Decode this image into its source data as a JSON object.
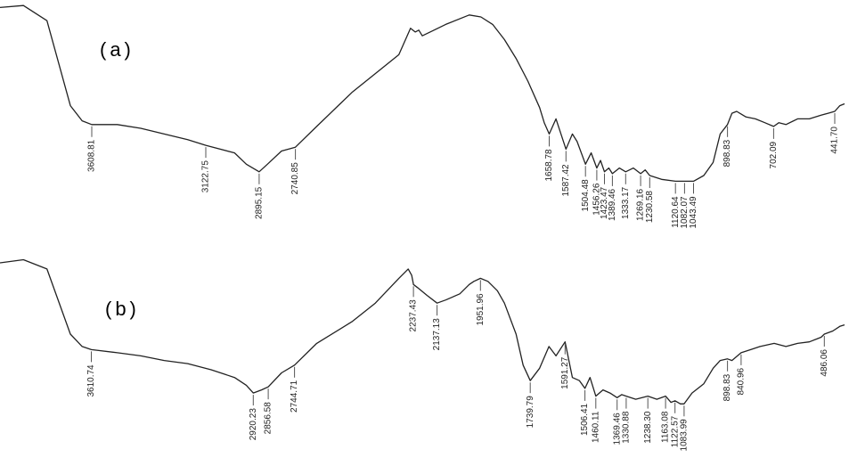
{
  "chart_data": [
    {
      "type": "line",
      "panel_label": "(a)",
      "axis": {
        "x_direction": "decreasing",
        "x_range": [
          4000,
          400
        ],
        "units": "cm-1"
      },
      "grid": false,
      "legend": "none",
      "peaks": [
        "3608.81",
        "3122.75",
        "2895.15",
        "2740.85",
        "1658.78",
        "1587.42",
        "1504.48",
        "1456.26",
        "1423.47",
        "1389.46",
        "1333.17",
        "1269.16",
        "1230.58",
        "1120.64",
        "1082.07",
        "1043.49",
        "898.83",
        "702.09",
        "441.70"
      ],
      "x": [
        4000,
        3900,
        3800,
        3700,
        3650,
        3608.81,
        3500,
        3400,
        3300,
        3200,
        3122.75,
        3000,
        2950,
        2895.15,
        2860,
        2800,
        2740.85,
        2650,
        2500,
        2400,
        2300,
        2250,
        2230,
        2215,
        2200,
        2150,
        2100,
        2000,
        1950,
        1900,
        1850,
        1800,
        1750,
        1700,
        1680,
        1658.78,
        1630,
        1587.42,
        1560,
        1540,
        1504.48,
        1480,
        1456.26,
        1440,
        1423.47,
        1405,
        1389.46,
        1360,
        1333.17,
        1300,
        1269.16,
        1250,
        1230.58,
        1180,
        1120.64,
        1082.07,
        1043.49,
        1000,
        960,
        930,
        898.83,
        880,
        860,
        820,
        780,
        740,
        702.09,
        680,
        650,
        600,
        550,
        500,
        470,
        441.7,
        420,
        400
      ],
      "y": [
        97,
        98,
        90,
        45,
        37,
        35,
        35,
        33,
        30,
        27,
        24,
        20,
        14,
        10,
        14,
        21,
        23,
        34,
        52,
        62,
        72,
        86,
        84,
        85,
        82,
        85,
        88,
        93,
        92,
        88,
        80,
        70,
        58,
        44,
        36,
        30,
        38,
        22,
        30,
        26,
        14,
        20,
        12,
        16,
        10,
        12,
        9,
        12,
        10,
        12,
        9,
        11,
        8,
        6,
        5,
        5,
        5,
        8,
        15,
        30,
        35,
        41,
        42,
        39,
        38,
        36,
        34,
        36,
        35,
        38,
        38,
        40,
        41,
        42,
        45,
        46
      ]
    },
    {
      "type": "line",
      "panel_label": "(b)",
      "axis": {
        "x_direction": "decreasing",
        "x_range": [
          4000,
          400
        ],
        "units": "cm-1"
      },
      "grid": false,
      "legend": "none",
      "peaks": [
        "3610.74",
        "2920.23",
        "2856.58",
        "2744.71",
        "2237.43",
        "2137.13",
        "1951.96",
        "1739.79",
        "1591.27",
        "1506.41",
        "1460.11",
        "1369.46",
        "1330.88",
        "1238.30",
        "1163.08",
        "1122.57",
        "1083.99",
        "898.83",
        "840.96",
        "486.06"
      ],
      "x": [
        4000,
        3900,
        3800,
        3700,
        3650,
        3610.74,
        3500,
        3400,
        3300,
        3200,
        3100,
        3000,
        2950,
        2920.23,
        2885,
        2856.58,
        2800,
        2744.71,
        2650,
        2500,
        2400,
        2300,
        2260,
        2245,
        2237.43,
        2220,
        2180,
        2137.13,
        2100,
        2040,
        2000,
        1980,
        1951.96,
        1920,
        1880,
        1850,
        1800,
        1770,
        1739.79,
        1700,
        1660,
        1630,
        1591.27,
        1560,
        1530,
        1506.41,
        1485,
        1460.11,
        1430,
        1400,
        1369.46,
        1350,
        1330.88,
        1290,
        1238.3,
        1200,
        1163.08,
        1140,
        1122.57,
        1100,
        1083.99,
        1050,
        1000,
        960,
        930,
        898.83,
        880,
        840.96,
        800,
        760,
        700,
        650,
        600,
        550,
        500,
        486.06,
        450,
        420,
        400
      ],
      "y": [
        96,
        98,
        92,
        50,
        42,
        40,
        38,
        36,
        33,
        31,
        27,
        22,
        17,
        12,
        14,
        16,
        25,
        30,
        44,
        58,
        70,
        86,
        92,
        88,
        82,
        80,
        75,
        70,
        72,
        76,
        82,
        84,
        86,
        84,
        78,
        70,
        50,
        30,
        20,
        28,
        42,
        36,
        45,
        22,
        20,
        15,
        22,
        10,
        14,
        12,
        9,
        11,
        10,
        8,
        10,
        8,
        10,
        6,
        7,
        5,
        5,
        12,
        18,
        28,
        33,
        34,
        33,
        38,
        40,
        42,
        44,
        42,
        44,
        45,
        48,
        50,
        52,
        55,
        56
      ]
    }
  ]
}
